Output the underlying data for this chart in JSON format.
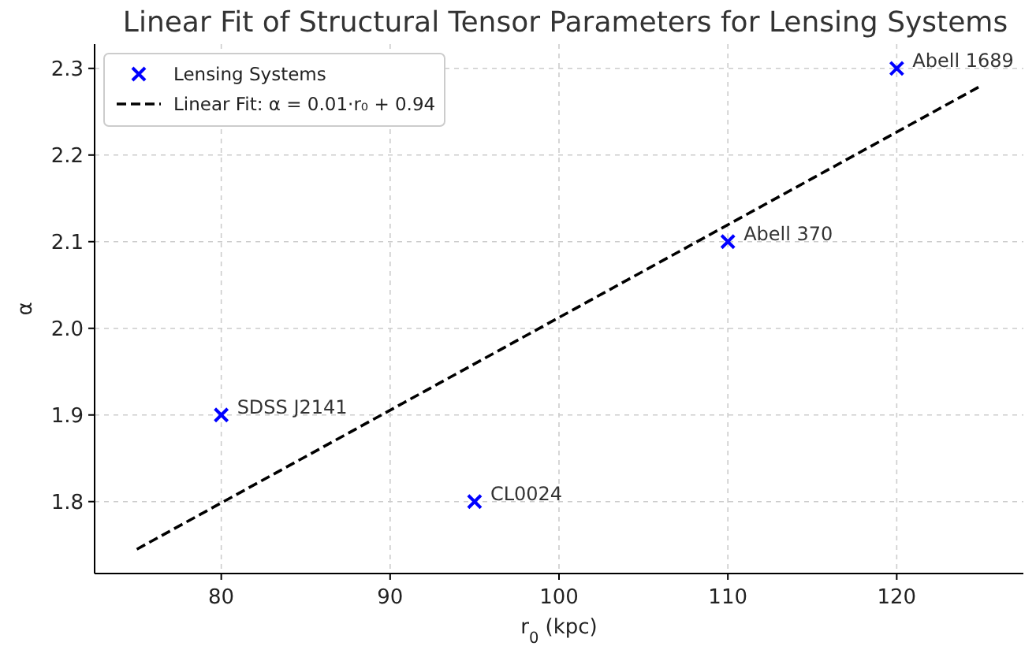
{
  "chart_data": {
    "type": "scatter",
    "title": "Linear Fit of Structural Tensor Parameters for Lensing Systems",
    "xlabel": "r$_{0}$ (kpc)",
    "ylabel": "α",
    "x": [
      80,
      95,
      110,
      120
    ],
    "series": [
      {
        "name": "Lensing Systems",
        "color": "#0000ff",
        "values": [
          1.9,
          1.8,
          2.1,
          2.3
        ],
        "marker": "cross"
      },
      {
        "name": "Linear Fit: α = 0.01·r₀ + 0.94",
        "type": "line",
        "color": "#000000",
        "x": [
          75,
          125
        ],
        "values": [
          1.745,
          2.28
        ],
        "line_style": "dashed",
        "marker": "none"
      }
    ],
    "annotations": [
      {
        "text": "SDSS J2141",
        "x": 80,
        "y": 1.9
      },
      {
        "text": "CL0024",
        "x": 95,
        "y": 1.8
      },
      {
        "text": "Abell 370",
        "x": 110,
        "y": 2.1
      },
      {
        "text": "Abell 1689",
        "x": 120,
        "y": 2.3
      }
    ],
    "xlim": [
      72.5,
      127.5
    ],
    "xticks": [
      80,
      90,
      100,
      110,
      120
    ],
    "ylim": [
      1.717,
      2.328
    ],
    "yticks": [
      {
        "value": 1.8,
        "label": "1.8"
      },
      {
        "value": 1.9,
        "label": "1.9"
      },
      {
        "value": 2.0,
        "label": "2.0"
      },
      {
        "value": 2.1,
        "label": "2.1"
      },
      {
        "value": 2.2,
        "label": "2.2"
      },
      {
        "value": 2.3,
        "label": "2.3"
      }
    ],
    "grid": true,
    "legend": "top left"
  }
}
